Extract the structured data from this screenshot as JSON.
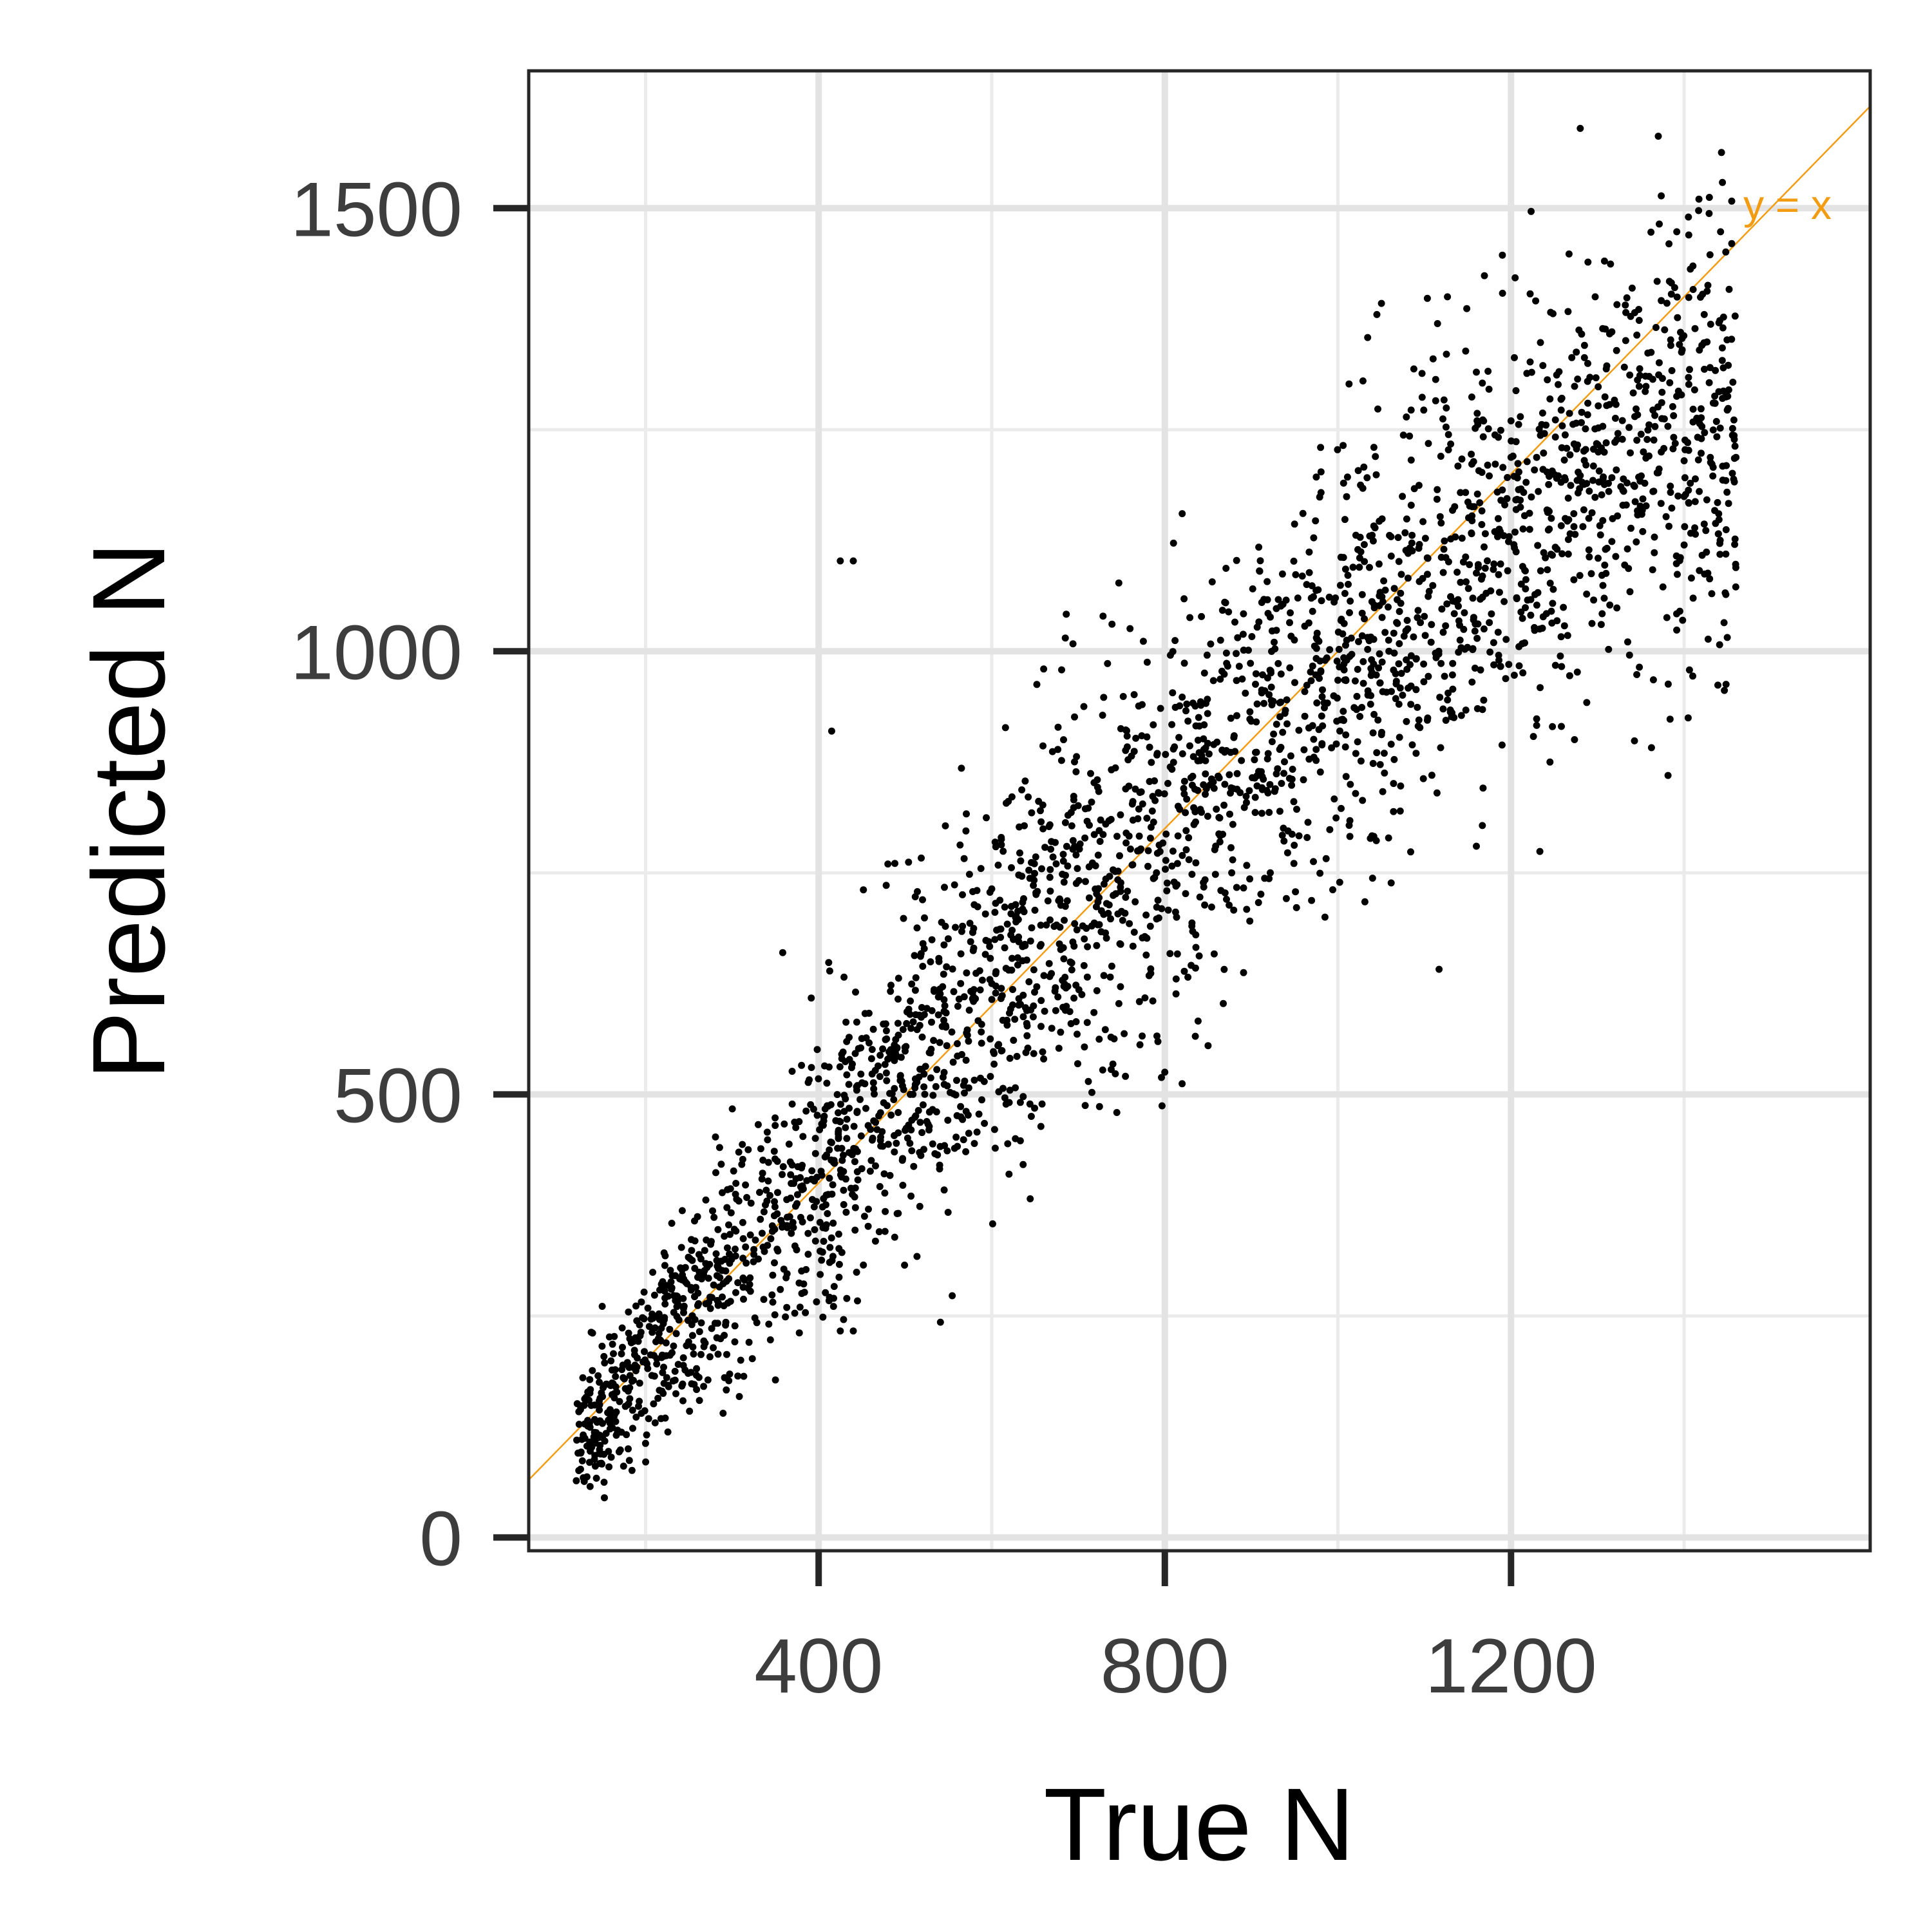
{
  "chart_data": {
    "type": "scatter",
    "title": "",
    "xlabel": "True N",
    "ylabel": "Predicted N",
    "xlim": [
      65,
      1615
    ],
    "ylim": [
      -15,
      1655
    ],
    "x_ticks": [
      400,
      800,
      1200
    ],
    "x_tick_labels": [
      "400",
      "800",
      "1200"
    ],
    "x_minor_ticks": [
      200,
      600,
      1000,
      1400
    ],
    "y_ticks": [
      0,
      500,
      1000,
      1500
    ],
    "y_tick_labels": [
      "0",
      "500",
      "1000",
      "1500"
    ],
    "y_minor_ticks": [
      250,
      750,
      1250
    ],
    "grid": true,
    "legend": "none",
    "point_color": "#000000",
    "reference_line": {
      "label": "y = x",
      "slope": 1,
      "intercept": 0,
      "color": "#f39c12"
    },
    "series": [
      {
        "points": [
          [
            1280,
            1590
          ],
          [
            1455,
            1508
          ],
          [
            1405,
            1490
          ],
          [
            1190,
            1447
          ],
          [
            1315,
            1437
          ],
          [
            1455,
            1460
          ],
          [
            1045,
            1380
          ],
          [
            980,
            1230
          ],
          [
            1110,
            1330
          ],
          [
            1160,
            1315
          ],
          [
            685,
            1015
          ],
          [
            660,
            980
          ],
          [
            565,
            868
          ],
          [
            480,
            760
          ],
          [
            415,
            910
          ],
          [
            425,
            233
          ],
          [
            440,
            233
          ],
          [
            425,
            1102
          ],
          [
            810,
            1122
          ],
          [
            440,
            1102
          ],
          [
            1160,
            780
          ],
          [
            850,
            555
          ],
          [
            800,
            525
          ],
          [
            820,
            512
          ],
          [
            985,
            700
          ],
          [
            1040,
            744
          ],
          [
            1245,
            875
          ],
          [
            1410,
            972
          ],
          [
            660,
            540
          ],
          [
            120,
            64
          ],
          [
            180,
            100
          ],
          [
            310,
            200
          ],
          [
            470,
            345
          ],
          [
            620,
            410
          ],
          [
            260,
            362
          ],
          [
            1200,
            1260
          ],
          [
            1420,
            1240
          ],
          [
            1400,
            1215
          ]
        ],
        "trend": {
          "x_range": [
            120,
            1460
          ],
          "y_at_x": [
            [
              120,
              112
            ],
            [
              300,
              305
            ],
            [
              500,
              520
            ],
            [
              700,
              728
            ],
            [
              900,
              905
            ],
            [
              1100,
              1050
            ],
            [
              1300,
              1205
            ],
            [
              1460,
              1255
            ]
          ],
          "spread_at_x": [
            [
              120,
              40
            ],
            [
              400,
              85
            ],
            [
              700,
              115
            ],
            [
              1000,
              120
            ],
            [
              1300,
              125
            ],
            [
              1460,
              130
            ]
          ],
          "count": 3000
        }
      }
    ]
  }
}
